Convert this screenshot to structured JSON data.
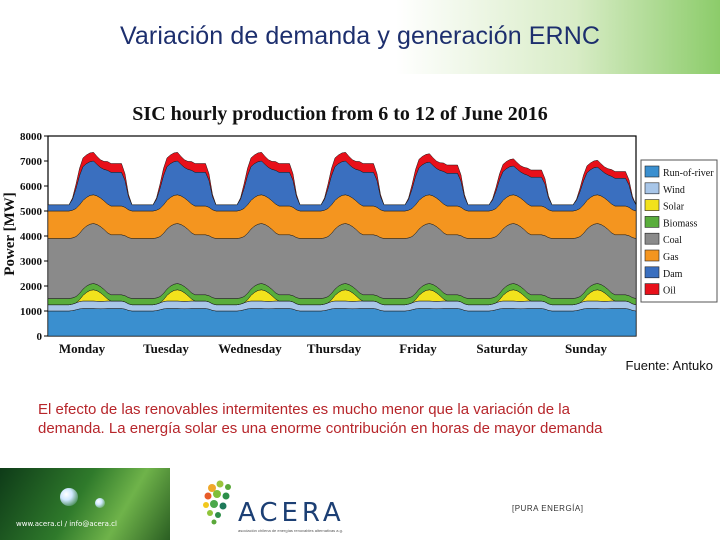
{
  "slide": {
    "title": "Variación de demanda y generación ERNC",
    "source": "Fuente: Antuko",
    "body_line1": "El efecto de las renovables intermitentes es mucho menor que la variación de la",
    "body_line2": "demanda. La energía solar es una enorme contribución en horas de mayor demanda"
  },
  "footer": {
    "contact": "www.acera.cl / info@acera.cl",
    "logo_text": "ACERA",
    "logo_tagline": "asociación chilena de energías renovables alternativas a.g.",
    "slogan": "[PURA ENERGÍA]"
  },
  "chart_data": {
    "type": "area",
    "title": "SIC hourly production from 6 to 12 of June 2016",
    "xlabel": "",
    "ylabel": "Power [MW]",
    "ylim": [
      0,
      8000
    ],
    "yticks": [
      "0",
      "1000",
      "2000",
      "3000",
      "4000",
      "5000",
      "6000",
      "7000",
      "8000"
    ],
    "categories": [
      "Monday",
      "Tuesday",
      "Wednesday",
      "Thursday",
      "Friday",
      "Saturday",
      "Sunday"
    ],
    "legend_position": "right",
    "colors": {
      "Run-of-river": "#3a8fcf",
      "Wind": "#a8c6e8",
      "Solar": "#f2e21c",
      "Biomass": "#59ad3c",
      "Coal": "#8a8a8a",
      "Gas": "#f4951f",
      "Dam": "#3a6fbf",
      "Oil": "#e8101a"
    },
    "series": [
      {
        "name": "Run-of-river",
        "night": 1000,
        "day": 1100
      },
      {
        "name": "Wind",
        "night": 250,
        "day": 300
      },
      {
        "name": "Solar",
        "night": 0,
        "day": 450
      },
      {
        "name": "Biomass",
        "night": 250,
        "day": 250
      },
      {
        "name": "Coal",
        "night": 2400,
        "day": 2400
      },
      {
        "name": "Gas",
        "night": 1100,
        "day": 1150
      },
      {
        "name": "Dam",
        "night": 250,
        "day": 1350
      },
      {
        "name": "Oil",
        "night": 0,
        "day": 350
      }
    ]
  }
}
